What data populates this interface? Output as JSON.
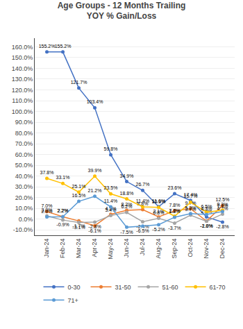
{
  "chart_data": {
    "type": "line",
    "title": "Age Groups - 12 Months Trailing\nYOY % Gain/Loss",
    "categories": [
      "Jan-24",
      "Feb-24",
      "Mar-24",
      "Apr-24",
      "May-24",
      "Jun-24",
      "Jul-24",
      "Aug-24",
      "Sep-24",
      "Oct-24",
      "Nov-24",
      "Dec-24"
    ],
    "series": [
      {
        "name": "0-30",
        "color": "#4472C4",
        "marker": "circle",
        "values": [
          155.2,
          155.2,
          121.7,
          103.4,
          59.8,
          34.9,
          26.7,
          11.6,
          23.6,
          17.4,
          2.0,
          -2.8
        ],
        "value_labels": [
          "155.2%",
          "155.2%",
          "121.7%",
          "103.4%",
          "59.8%",
          "34.9%",
          "26.7%",
          "11.6%",
          "23.6%",
          "17.4%",
          "2.0%",
          "-2.8%"
        ]
      },
      {
        "name": "31-50",
        "color": "#ED7D31",
        "marker": "circle",
        "values": [
          7.0,
          2.2,
          -1.7,
          -6.1,
          4.5,
          8.2,
          8.8,
          2.1,
          7.8,
          9.7,
          -1.8,
          12.5
        ],
        "value_labels": [
          "7.0%",
          "2.2%",
          "-1.7%",
          "-6.1%",
          "4.5%",
          "8.2%",
          "8.8%",
          "2.1%",
          "7.8%",
          "9.7%",
          "-1.8%",
          "12.5%"
        ]
      },
      {
        "name": "51-60",
        "color": "#A5A5A5",
        "marker": "circle",
        "values": [
          3.0,
          -0.9,
          -3.1,
          -2.8,
          3.4,
          6.2,
          -2.4,
          0.8,
          -3.7,
          3.7,
          -2.0,
          4.7
        ],
        "value_labels": [
          "3.0%",
          "-0.9%",
          "-3.1%",
          "-2.8%",
          "3.4%",
          "6.2%",
          "-2.4%",
          "0.8%",
          "-3.7%",
          "3.7%",
          "-2.0%",
          "4.7%"
        ]
      },
      {
        "name": "61-70",
        "color": "#FFC000",
        "marker": "circle",
        "values": [
          37.8,
          33.1,
          25.1,
          39.9,
          23.5,
          18.8,
          11.4,
          10.9,
          2.7,
          15.7,
          6.5,
          8.3
        ],
        "value_labels": [
          "37.8%",
          "33.1%",
          "25.1%",
          "39.9%",
          "23.5%",
          "18.8%",
          "11.4%",
          "10.9%",
          "2.7%",
          "15.7%",
          "6.5%",
          "8.3%"
        ]
      },
      {
        "name": "71+",
        "color": "#5B9BD5",
        "marker": "circle",
        "values": [
          2.0,
          2.2,
          16.5,
          21.2,
          11.4,
          -7.5,
          -6.5,
          -5.2,
          1.8,
          5.2,
          4.3,
          7.1
        ],
        "value_labels": [
          "2.0%",
          "2.2%",
          "16.5%",
          "21.2%",
          "11.4%",
          "-7.5%",
          "-6.5%",
          "-5.2%",
          "1.8%",
          "5.2%",
          "4.3%",
          "7.1%"
        ]
      }
    ],
    "ylim": [
      -15,
      168
    ],
    "yticks": [
      {
        "value": -10,
        "label": "-10.0%"
      },
      {
        "value": 0,
        "label": "0.0%"
      },
      {
        "value": 10,
        "label": "10.0%"
      },
      {
        "value": 20,
        "label": "20.0%"
      },
      {
        "value": 30,
        "label": "30.0%"
      },
      {
        "value": 40,
        "label": "40.0%"
      },
      {
        "value": 50,
        "label": "50.0%"
      },
      {
        "value": 60,
        "label": "60.0%"
      },
      {
        "value": 70,
        "label": "70.0%"
      },
      {
        "value": 80,
        "label": "80.0%"
      },
      {
        "value": 90,
        "label": "90.0%"
      },
      {
        "value": 100,
        "label": "100.0%"
      },
      {
        "value": 110,
        "label": "110.0%"
      },
      {
        "value": 120,
        "label": "120.0%"
      },
      {
        "value": 130,
        "label": "130.0%"
      },
      {
        "value": 140,
        "label": "140.0%"
      },
      {
        "value": 150,
        "label": "150.0%"
      },
      {
        "value": 160,
        "label": "160.0%"
      }
    ],
    "grid": true,
    "legend": "bottom",
    "data_labels": true
  }
}
